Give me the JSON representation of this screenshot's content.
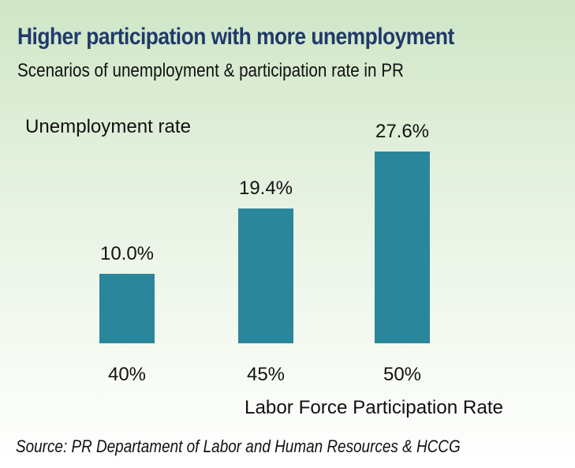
{
  "header": {
    "title": "Higher participation with more unemployment",
    "subtitle": "Scenarios of unemployment & participation rate in PR"
  },
  "footer": {
    "source": "Source: PR Departament of Labor and Human Resources & HCCG"
  },
  "colors": {
    "bar": "#2a869a",
    "title": "#203a6b"
  },
  "chart_data": {
    "type": "bar",
    "categories": [
      "40%",
      "45%",
      "50%"
    ],
    "values": [
      10.0,
      19.4,
      27.6
    ],
    "value_labels": [
      "10.0%",
      "19.4%",
      "27.6%"
    ],
    "ylabel": "Unemployment rate",
    "xlabel": "Labor Force Participation Rate",
    "ylim": [
      0,
      30
    ],
    "grid": false,
    "legend": "none"
  }
}
